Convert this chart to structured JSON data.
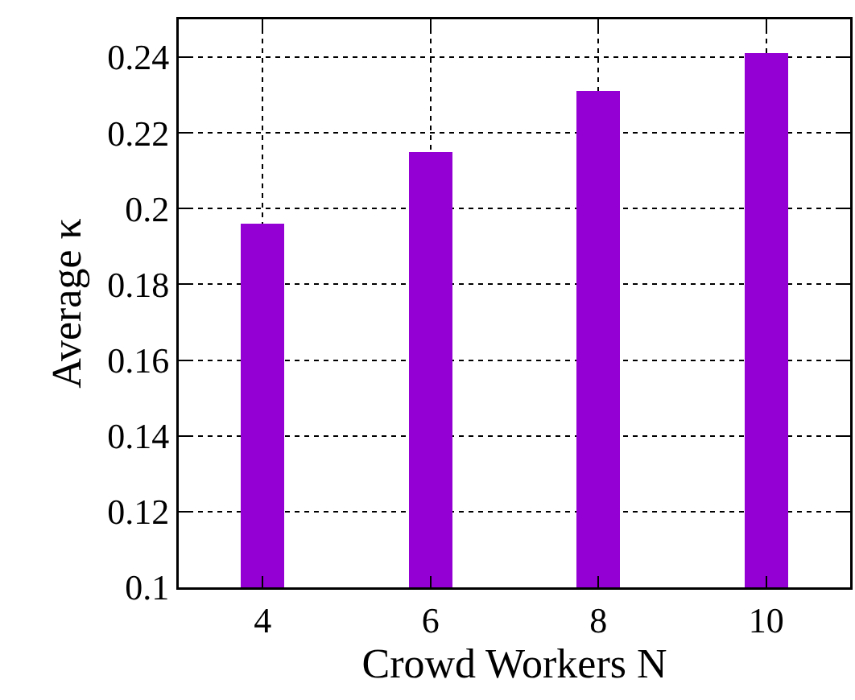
{
  "chart_data": {
    "type": "bar",
    "x": [
      4,
      6,
      8,
      10
    ],
    "values": [
      0.196,
      0.215,
      0.231,
      0.241
    ],
    "color": "#9400d3",
    "xlim": [
      3,
      11
    ],
    "xticks": [
      4,
      6,
      8,
      10
    ],
    "ylim": [
      0.1,
      0.25
    ],
    "yticks": [
      0.1,
      0.12,
      0.14,
      0.16,
      0.18,
      {
        "value": 0.2,
        "label": "0.2"
      },
      0.22,
      0.24
    ],
    "xlabel": "Crowd Workers N",
    "ylabel": "Average κ",
    "grid": true
  }
}
